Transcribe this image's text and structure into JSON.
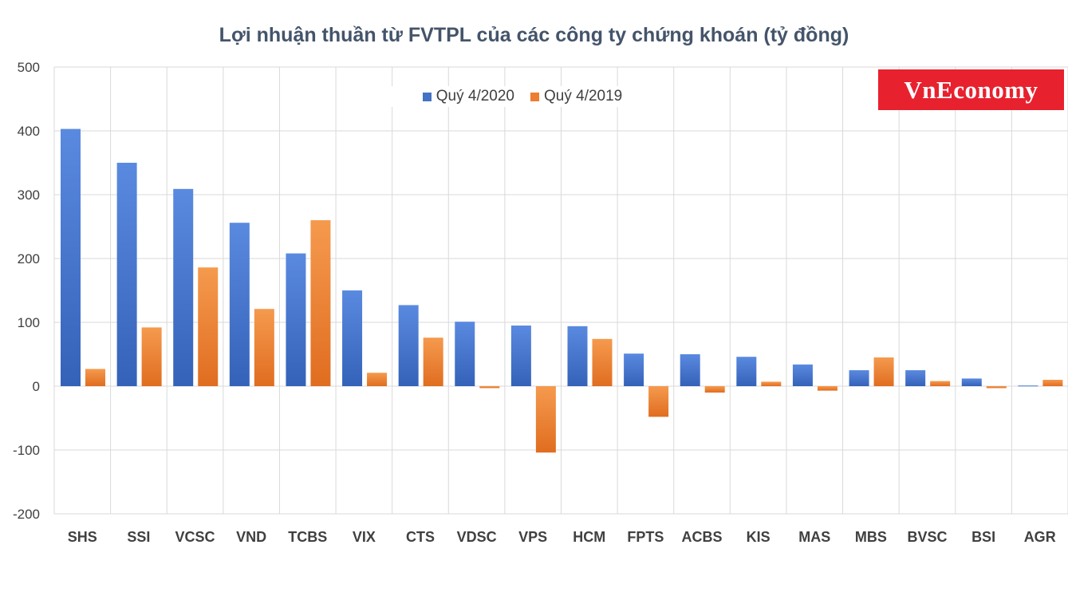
{
  "colors": {
    "series1": "#4472c4",
    "series2": "#ed7d31",
    "grid": "#d9d9d9",
    "text": "#404040",
    "title": "#44546a",
    "logo_bg": "#e8212e"
  },
  "logo": {
    "text": "VnEconomy"
  },
  "chart_data": {
    "type": "bar",
    "title": "Lợi nhuận thuần từ FVTPL của các công ty chứng khoán (tỷ đồng)",
    "xlabel": "",
    "ylabel": "",
    "ylim": [
      -200,
      500
    ],
    "yticks": [
      500,
      400,
      300,
      200,
      100,
      0,
      -100,
      -200
    ],
    "grid": true,
    "legend_position": "top",
    "categories": [
      "SHS",
      "SSI",
      "VCSC",
      "VND",
      "TCBS",
      "VIX",
      "CTS",
      "VDSC",
      "VPS",
      "HCM",
      "FPTS",
      "ACBS",
      "KIS",
      "MAS",
      "MBS",
      "BVSC",
      "BSI",
      "AGR"
    ],
    "series": [
      {
        "name": "Quý 4/2020",
        "values": [
          403,
          350,
          309,
          256,
          208,
          150,
          127,
          101,
          95,
          94,
          51,
          50,
          46,
          34,
          25,
          25,
          12,
          1
        ]
      },
      {
        "name": "Quý 4/2019",
        "values": [
          27,
          92,
          186,
          121,
          260,
          21,
          76,
          -3,
          -104,
          74,
          -48,
          -10,
          7,
          -7,
          45,
          8,
          -3,
          10
        ]
      }
    ]
  }
}
